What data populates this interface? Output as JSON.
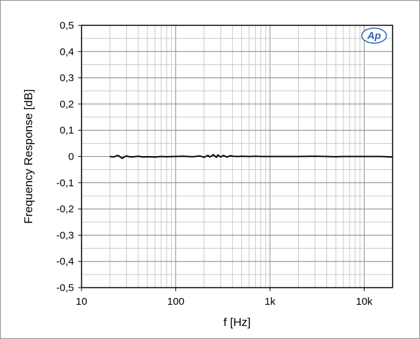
{
  "chart_data": {
    "type": "line",
    "xlabel": "f [Hz]",
    "ylabel": "Frequency Response  [dB]",
    "x_scale": "log",
    "xlim": [
      10,
      20000
    ],
    "ylim": [
      -0.5,
      0.5
    ],
    "grid": true,
    "x_ticks": [
      {
        "value": 10,
        "label": "10"
      },
      {
        "value": 100,
        "label": "100"
      },
      {
        "value": 1000,
        "label": "1k"
      },
      {
        "value": 10000,
        "label": "10k"
      }
    ],
    "y_ticks": [
      {
        "value": 0.5,
        "label": "0,5"
      },
      {
        "value": 0.4,
        "label": "0,4"
      },
      {
        "value": 0.3,
        "label": "0,3"
      },
      {
        "value": 0.2,
        "label": "0,2"
      },
      {
        "value": 0.1,
        "label": "0,1"
      },
      {
        "value": 0,
        "label": "0"
      },
      {
        "value": -0.1,
        "label": "-0,1"
      },
      {
        "value": -0.2,
        "label": "-0,2"
      },
      {
        "value": -0.3,
        "label": "-0,3"
      },
      {
        "value": -0.4,
        "label": "-0,4"
      },
      {
        "value": -0.5,
        "label": "-0,5"
      }
    ],
    "series": [
      {
        "color": "#000000",
        "x": [
          20,
          22,
          24,
          25,
          26,
          27,
          28,
          30,
          33,
          36,
          40,
          45,
          50,
          60,
          70,
          80,
          100,
          120,
          150,
          180,
          200,
          210,
          220,
          230,
          240,
          250,
          260,
          270,
          280,
          290,
          300,
          320,
          350,
          380,
          400,
          450,
          500,
          600,
          700,
          800,
          1000,
          1500,
          2000,
          3000,
          4000,
          5000,
          6000,
          8000,
          10000,
          15000,
          20000
        ],
        "y": [
          0,
          -0.002,
          0.004,
          0.002,
          -0.003,
          -0.007,
          -0.003,
          0.002,
          -0.002,
          -0.001,
          0.001,
          -0.002,
          -0.001,
          -0.002,
          0,
          -0.001,
          0,
          0.001,
          -0.001,
          0.002,
          -0.003,
          0.001,
          0.004,
          -0.002,
          0.002,
          0.007,
          0.002,
          -0.003,
          0.006,
          0.001,
          -0.002,
          0.004,
          -0.002,
          0.003,
          0.001,
          0,
          0.001,
          0,
          0.001,
          0,
          0,
          0,
          0,
          0.001,
          0,
          -0.001,
          0,
          0,
          0,
          0,
          -0.002
        ]
      }
    ],
    "logo": "AP"
  }
}
